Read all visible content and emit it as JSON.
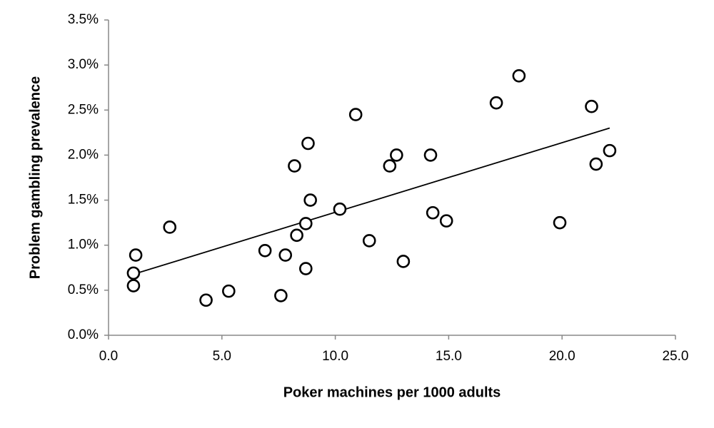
{
  "chart_data": {
    "type": "scatter",
    "x_label": "Poker machines per 1000 adults",
    "y_label": "Problem gambling prevalence",
    "x": [
      1.1,
      1.1,
      1.2,
      2.7,
      4.3,
      5.3,
      6.9,
      7.6,
      7.8,
      8.2,
      8.3,
      8.7,
      8.7,
      8.8,
      8.9,
      10.2,
      10.9,
      11.5,
      12.4,
      12.7,
      13.0,
      14.2,
      14.3,
      14.9,
      17.1,
      18.1,
      19.9,
      21.3,
      21.5,
      22.1
    ],
    "values": [
      0.69,
      0.55,
      0.89,
      1.2,
      0.39,
      0.49,
      0.94,
      0.44,
      0.89,
      1.88,
      1.11,
      1.24,
      0.74,
      2.13,
      1.5,
      1.4,
      2.45,
      1.05,
      1.88,
      2.0,
      0.82,
      2.0,
      1.36,
      1.27,
      2.58,
      2.88,
      1.25,
      2.54,
      1.9,
      2.05
    ],
    "color": "#000000",
    "trendline": {
      "x": [
        1.0,
        22.1
      ],
      "values": [
        0.67,
        2.3
      ]
    },
    "xlim": [
      0,
      25
    ],
    "ylim": [
      0,
      3.5
    ],
    "xticks": [
      {
        "value": 0,
        "label": "0.0"
      },
      {
        "value": 5,
        "label": "5.0"
      },
      {
        "value": 10,
        "label": "10.0"
      },
      {
        "value": 15,
        "label": "15.0"
      },
      {
        "value": 20,
        "label": "20.0"
      },
      {
        "value": 25,
        "label": "25.0"
      }
    ],
    "yticks": [
      {
        "value": 0,
        "label": "0.0%"
      },
      {
        "value": 0.5,
        "label": "0.5%"
      },
      {
        "value": 1,
        "label": "1.0%"
      },
      {
        "value": 1.5,
        "label": "1.5%"
      },
      {
        "value": 2,
        "label": "2.0%"
      },
      {
        "value": 2.5,
        "label": "2.5%"
      },
      {
        "value": 3,
        "label": "3.0%"
      },
      {
        "value": 3.5,
        "label": "3.5%"
      }
    ],
    "grid": false
  }
}
